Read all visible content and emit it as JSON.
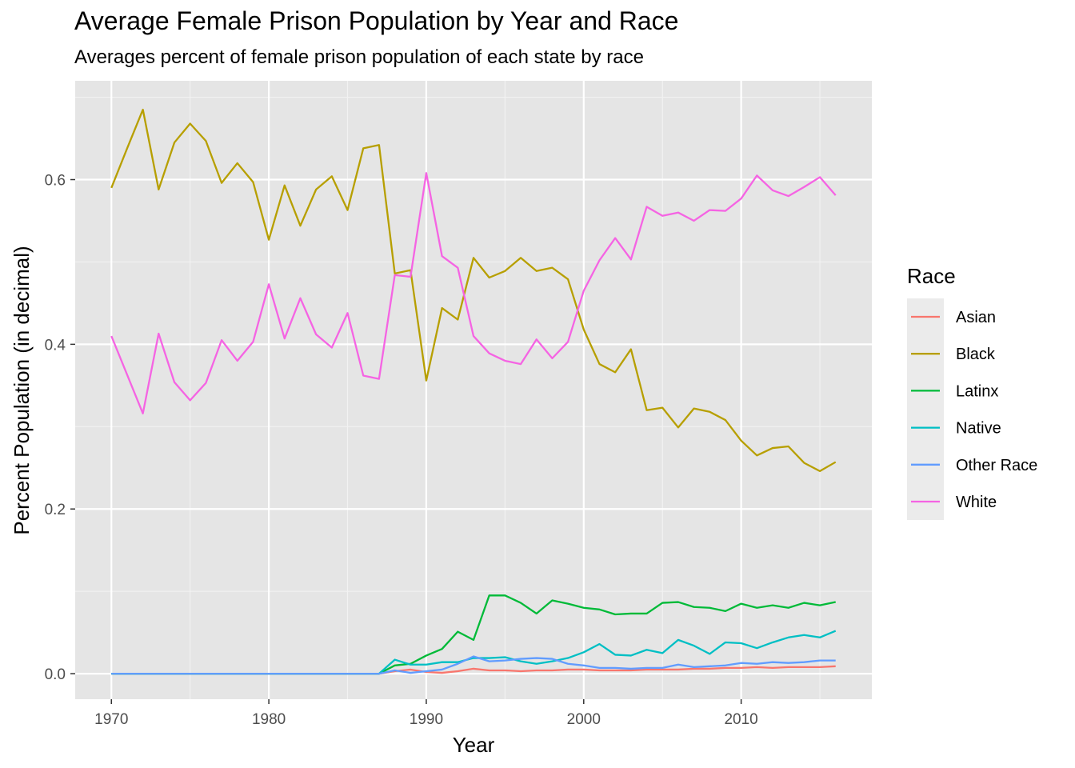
{
  "chart_data": {
    "type": "line",
    "title": "Average Female Prison Population by Year and Race",
    "subtitle": "Averages percent of female prison population of each state by race",
    "xlabel": "Year",
    "ylabel": "Percent Population (in decimal)",
    "xlim": [
      1967.7,
      2018.3
    ],
    "ylim": [
      -0.031,
      0.72
    ],
    "x_ticks": [
      1970,
      1980,
      1990,
      2000,
      2010
    ],
    "y_ticks": [
      0.0,
      0.2,
      0.4,
      0.6
    ],
    "y_tick_labels": [
      "0.0",
      "0.2",
      "0.4",
      "0.6"
    ],
    "grid": true,
    "panel_background": "#e5e5e5",
    "legend": {
      "title": "Race",
      "position": "right"
    },
    "x": [
      1970,
      1971,
      1972,
      1973,
      1974,
      1975,
      1976,
      1977,
      1978,
      1979,
      1980,
      1981,
      1982,
      1983,
      1984,
      1985,
      1986,
      1987,
      1988,
      1989,
      1990,
      1991,
      1992,
      1993,
      1994,
      1995,
      1996,
      1997,
      1998,
      1999,
      2000,
      2001,
      2002,
      2003,
      2004,
      2005,
      2006,
      2007,
      2008,
      2009,
      2010,
      2011,
      2012,
      2013,
      2014,
      2015,
      2016
    ],
    "series": [
      {
        "name": "Asian",
        "color": "#F8766D",
        "values": [
          0,
          0,
          0,
          0,
          0,
          0,
          0,
          0,
          0,
          0,
          0,
          0,
          0,
          0,
          0,
          0,
          0,
          0,
          0.003,
          0.005,
          0.002,
          0.001,
          0.003,
          0.006,
          0.004,
          0.004,
          0.003,
          0.004,
          0.004,
          0.005,
          0.005,
          0.004,
          0.004,
          0.004,
          0.005,
          0.005,
          0.005,
          0.006,
          0.006,
          0.007,
          0.007,
          0.008,
          0.007,
          0.008,
          0.008,
          0.008,
          0.009
        ]
      },
      {
        "name": "Black",
        "color": "#B79F00",
        "values": [
          0.59,
          0.638,
          0.685,
          0.588,
          0.645,
          0.668,
          0.647,
          0.596,
          0.62,
          0.597,
          0.527,
          0.593,
          0.544,
          0.588,
          0.604,
          0.563,
          0.638,
          0.642,
          0.486,
          0.49,
          0.356,
          0.444,
          0.43,
          0.505,
          0.481,
          0.489,
          0.505,
          0.489,
          0.493,
          0.479,
          0.418,
          0.376,
          0.366,
          0.394,
          0.32,
          0.323,
          0.299,
          0.322,
          0.318,
          0.308,
          0.283,
          0.265,
          0.274,
          0.276,
          0.256,
          0.246,
          0.257
        ]
      },
      {
        "name": "Latinx",
        "color": "#00BA38",
        "values": [
          0,
          0,
          0,
          0,
          0,
          0,
          0,
          0,
          0,
          0,
          0,
          0,
          0,
          0,
          0,
          0,
          0,
          0,
          0.01,
          0.012,
          0.022,
          0.03,
          0.051,
          0.041,
          0.095,
          0.095,
          0.086,
          0.073,
          0.089,
          0.085,
          0.08,
          0.078,
          0.072,
          0.073,
          0.073,
          0.086,
          0.087,
          0.081,
          0.08,
          0.076,
          0.085,
          0.08,
          0.083,
          0.08,
          0.086,
          0.083,
          0.087
        ]
      },
      {
        "name": "Native",
        "color": "#00BFC4",
        "values": [
          0,
          0,
          0,
          0,
          0,
          0,
          0,
          0,
          0,
          0,
          0,
          0,
          0,
          0,
          0,
          0,
          0,
          0,
          0.017,
          0.011,
          0.011,
          0.014,
          0.014,
          0.019,
          0.019,
          0.02,
          0.015,
          0.012,
          0.015,
          0.019,
          0.026,
          0.036,
          0.023,
          0.022,
          0.029,
          0.025,
          0.041,
          0.034,
          0.024,
          0.038,
          0.037,
          0.031,
          0.038,
          0.044,
          0.047,
          0.044,
          0.052
        ]
      },
      {
        "name": "Other Race",
        "color": "#619CFF",
        "values": [
          0,
          0,
          0,
          0,
          0,
          0,
          0,
          0,
          0,
          0,
          0,
          0,
          0,
          0,
          0,
          0,
          0,
          0,
          0.004,
          0.001,
          0.003,
          0.005,
          0.012,
          0.021,
          0.015,
          0.016,
          0.018,
          0.019,
          0.018,
          0.012,
          0.01,
          0.007,
          0.007,
          0.006,
          0.007,
          0.007,
          0.011,
          0.008,
          0.009,
          0.01,
          0.013,
          0.012,
          0.014,
          0.013,
          0.014,
          0.016,
          0.016
        ]
      },
      {
        "name": "White",
        "color": "#F564E3",
        "values": [
          0.41,
          0.363,
          0.316,
          0.413,
          0.354,
          0.332,
          0.353,
          0.405,
          0.38,
          0.403,
          0.473,
          0.407,
          0.456,
          0.412,
          0.396,
          0.438,
          0.362,
          0.358,
          0.484,
          0.482,
          0.608,
          0.507,
          0.493,
          0.41,
          0.389,
          0.38,
          0.376,
          0.406,
          0.383,
          0.403,
          0.465,
          0.502,
          0.529,
          0.503,
          0.567,
          0.556,
          0.56,
          0.55,
          0.563,
          0.562,
          0.577,
          0.605,
          0.587,
          0.58,
          0.591,
          0.603,
          0.581
        ]
      }
    ]
  }
}
